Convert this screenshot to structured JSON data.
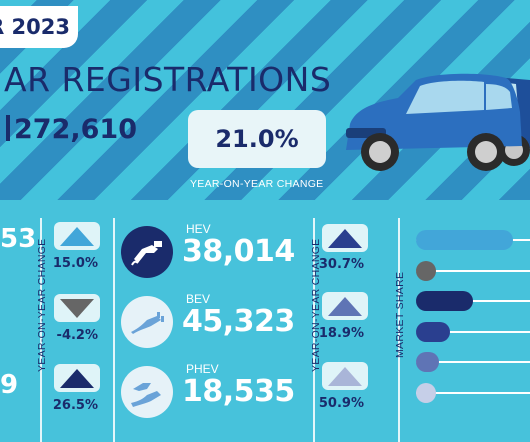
{
  "header": {
    "year_badge": "R 2023",
    "title": "AR REGISTRATIONS",
    "total": "272,610",
    "yoy_percent": "21.0%",
    "yoy_label": "YEAR-ON-YEAR CHANGE"
  },
  "left_partial": {
    "top_value": "53",
    "bottom_value": "9"
  },
  "left_changes": {
    "axis_label": "YEAR-ON-YEAR CHANGE",
    "items": [
      {
        "direction": "up",
        "color": "#42a6d9",
        "value": "15.0%"
      },
      {
        "direction": "down",
        "color": "#666666",
        "value": "-4.2%"
      },
      {
        "direction": "up",
        "color": "#1a2b6b",
        "value": "26.5%"
      }
    ]
  },
  "types": [
    {
      "name": "HEV",
      "value": "38,014",
      "icon": "fuel-nozzle-icon",
      "theme": "dark"
    },
    {
      "name": "BEV",
      "value": "45,323",
      "icon": "ev-plug-icon",
      "theme": "light"
    },
    {
      "name": "PHEV",
      "value": "18,535",
      "icon": "hybrid-plug-nozzle-icon",
      "theme": "light"
    }
  ],
  "right_changes": {
    "axis_label": "YEAR-ON-YEAR CHANGE",
    "items": [
      {
        "direction": "up",
        "color": "#2a3f8f",
        "value": "30.7%"
      },
      {
        "direction": "up",
        "color": "#5f74b5",
        "value": "18.9%"
      },
      {
        "direction": "up",
        "color": "#a9b5d8",
        "value": "50.9%"
      }
    ]
  },
  "market_share": {
    "axis_label": "MARKET SHARE",
    "bars": [
      {
        "color": "#42a6d9",
        "share": 0.85
      },
      {
        "color": "#666666",
        "share": 0.0
      },
      {
        "color": "#1a2b6b",
        "share": 0.5
      },
      {
        "color": "#2a3f8f",
        "share": 0.3
      },
      {
        "color": "#5f74b5",
        "share": 0.2
      },
      {
        "color": "#c6cfe8",
        "share": 0.0
      }
    ]
  }
}
